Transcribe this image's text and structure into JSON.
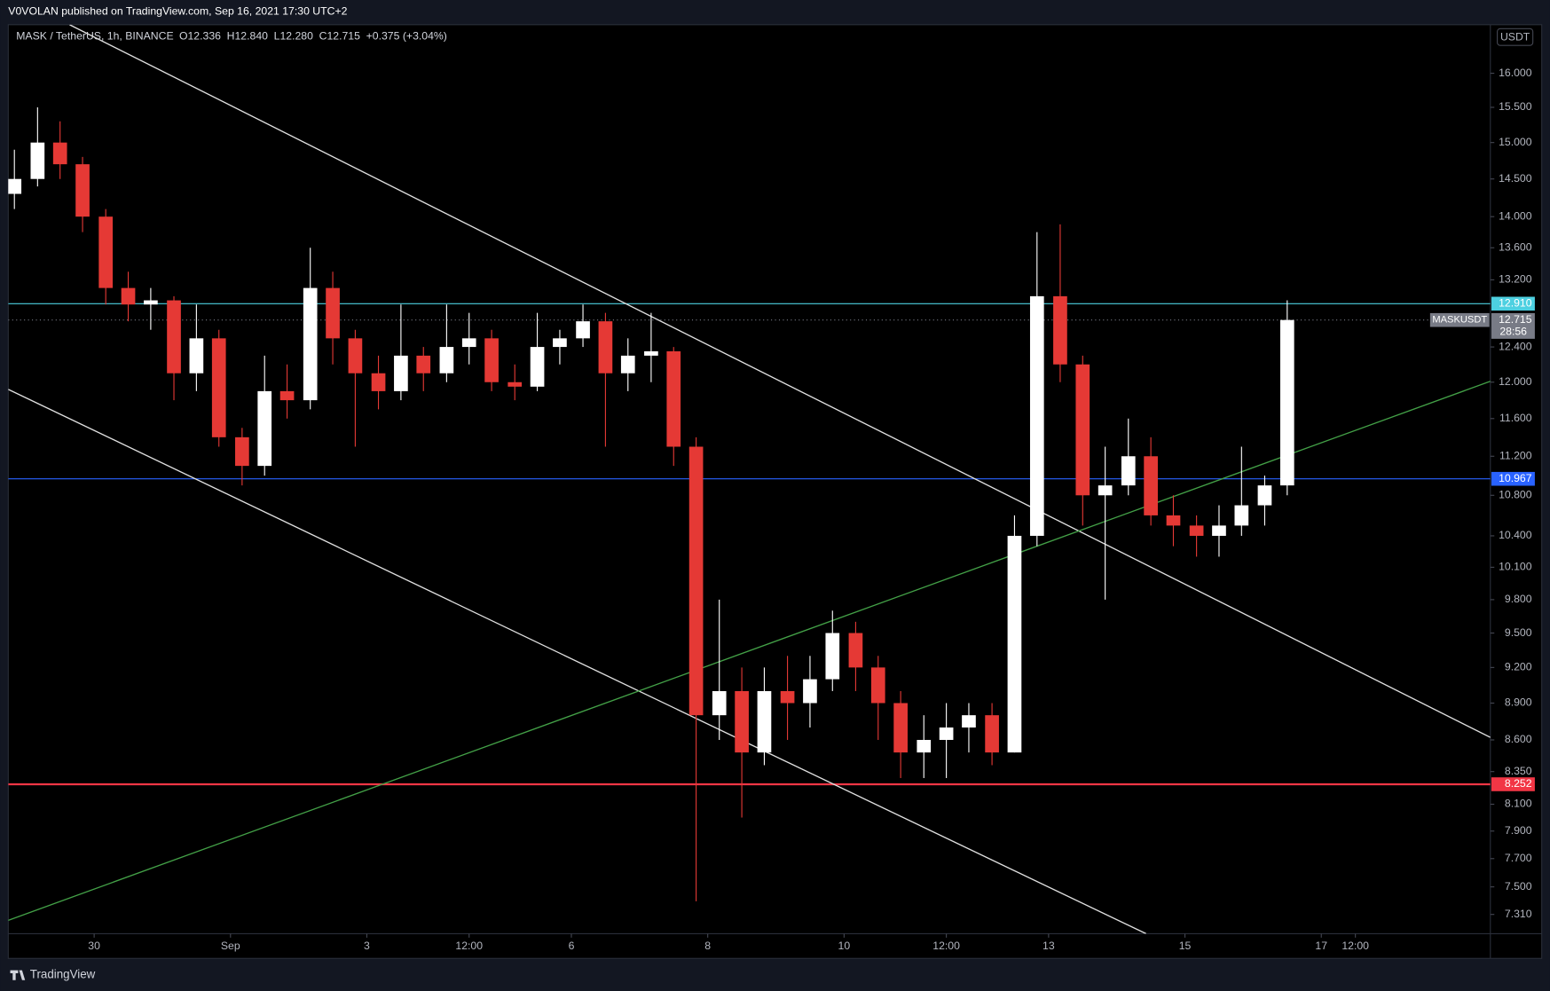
{
  "chart_data": {
    "type": "candlestick",
    "publisher_note": "V0VOLAN published on TradingView.com, Sep 16, 2021 17:30 UTC+2",
    "symbol": "MASK / TetherUS, 1h, BINANCE",
    "ohlc": [
      "O12.336",
      "H12.840",
      "L12.280",
      "C12.715",
      "+0.375 (+3.04%)"
    ],
    "currency": "USDT",
    "brand": "TradingView",
    "log_scale": true,
    "up_color": "#ffffff",
    "down_color": "#e53935",
    "xlim": [
      28.74,
      50.48
    ],
    "ylim": [
      7.18,
      16.74
    ],
    "xticks": [
      30,
      {
        "value": 32,
        "label": "Sep"
      },
      {
        "value": 34,
        "label": "3"
      },
      {
        "value": 35.5,
        "label": "12:00"
      },
      {
        "value": 37,
        "label": "6"
      },
      {
        "value": 39,
        "label": "8"
      },
      {
        "value": 41,
        "label": "10"
      },
      {
        "value": 42.5,
        "label": "12:00"
      },
      {
        "value": 44,
        "label": "13"
      },
      {
        "value": 46,
        "label": "15"
      },
      {
        "value": 48,
        "label": "17"
      },
      {
        "value": 48.5,
        "label": "12:00"
      }
    ],
    "yticks": [
      {
        "value": 16,
        "label": "16.000"
      },
      {
        "value": 15.5,
        "label": "15.500"
      },
      {
        "value": 15,
        "label": "15.000"
      },
      {
        "value": 14.5,
        "label": "14.500"
      },
      {
        "value": 14,
        "label": "14.000"
      },
      {
        "value": 13.6,
        "label": "13.600"
      },
      {
        "value": 13.2,
        "label": "13.200"
      },
      {
        "value": 12.4,
        "label": "12.400"
      },
      {
        "value": 12,
        "label": "12.000"
      },
      {
        "value": 11.6,
        "label": "11.600"
      },
      {
        "value": 11.2,
        "label": "11.200"
      },
      {
        "value": 10.8,
        "label": "10.800"
      },
      {
        "value": 10.4,
        "label": "10.400"
      },
      {
        "value": 10.1,
        "label": "10.100"
      },
      {
        "value": 9.8,
        "label": "9.800"
      },
      {
        "value": 9.5,
        "label": "9.500"
      },
      {
        "value": 9.2,
        "label": "9.200"
      },
      {
        "value": 8.9,
        "label": "8.900"
      },
      {
        "value": 8.6,
        "label": "8.600"
      },
      {
        "value": 8.35,
        "label": "8.350"
      },
      {
        "value": 8.1,
        "label": "8.100"
      },
      {
        "value": 7.9,
        "label": "7.900"
      },
      {
        "value": 7.7,
        "label": "7.700"
      },
      {
        "value": 7.5,
        "label": "7.500"
      },
      {
        "value": 7.31,
        "label": "7.310"
      }
    ],
    "x": [
      28.83,
      29.17,
      29.5,
      29.83,
      30.17,
      30.5,
      30.83,
      31.17,
      31.5,
      31.83,
      32.17,
      32.5,
      32.83,
      33.17,
      33.5,
      33.83,
      34.17,
      34.5,
      34.83,
      35.17,
      35.5,
      35.83,
      36.17,
      36.5,
      36.83,
      37.17,
      37.5,
      37.83,
      38.17,
      38.5,
      38.83,
      39.17,
      39.5,
      39.83,
      40.17,
      40.5,
      40.83,
      41.17,
      41.5,
      41.83,
      42.17,
      42.5,
      42.83,
      43.17,
      43.5,
      43.83,
      44.17,
      44.5,
      44.83,
      45.17,
      45.5,
      45.83,
      46.17,
      46.5,
      46.83,
      47.17,
      47.5
    ],
    "open": [
      14.3,
      14.5,
      15.0,
      14.7,
      14.0,
      13.1,
      12.9,
      12.95,
      12.1,
      12.5,
      11.4,
      11.1,
      11.9,
      11.8,
      13.1,
      12.5,
      12.1,
      11.9,
      12.3,
      12.1,
      12.4,
      12.5,
      12.0,
      11.95,
      12.4,
      12.5,
      12.7,
      12.1,
      12.3,
      12.35,
      11.3,
      8.8,
      9.0,
      8.5,
      9.0,
      8.9,
      9.1,
      9.5,
      9.2,
      8.9,
      8.5,
      8.6,
      8.7,
      8.8,
      8.5,
      10.4,
      13.0,
      12.2,
      10.8,
      10.9,
      11.2,
      10.6,
      10.5,
      10.4,
      10.5,
      10.7,
      10.9
    ],
    "high": [
      14.9,
      15.5,
      15.3,
      14.8,
      14.1,
      13.3,
      13.1,
      13.0,
      12.9,
      12.6,
      11.5,
      12.3,
      12.2,
      13.6,
      13.3,
      12.6,
      12.3,
      12.9,
      12.4,
      12.9,
      12.8,
      12.6,
      12.2,
      12.8,
      12.6,
      12.9,
      12.8,
      12.5,
      12.8,
      12.4,
      11.4,
      9.8,
      9.2,
      9.2,
      9.3,
      9.3,
      9.7,
      9.6,
      9.3,
      9.0,
      8.8,
      8.9,
      8.9,
      8.9,
      10.6,
      13.8,
      13.9,
      12.3,
      11.3,
      11.6,
      11.4,
      10.8,
      10.6,
      10.7,
      11.3,
      11.0,
      12.95
    ],
    "low": [
      14.1,
      14.4,
      14.5,
      13.8,
      12.9,
      12.7,
      12.6,
      11.8,
      11.9,
      11.3,
      10.9,
      11.0,
      11.6,
      11.7,
      12.2,
      11.3,
      11.7,
      11.8,
      11.9,
      12.0,
      12.2,
      11.9,
      11.8,
      11.9,
      12.2,
      12.4,
      11.3,
      11.9,
      12.0,
      11.1,
      7.4,
      8.6,
      8.0,
      8.4,
      8.6,
      8.7,
      9.0,
      9.0,
      8.6,
      8.3,
      8.3,
      8.3,
      8.5,
      8.4,
      8.5,
      10.3,
      12.0,
      10.5,
      9.8,
      10.8,
      10.5,
      10.3,
      10.2,
      10.2,
      10.4,
      10.5,
      10.8
    ],
    "close": [
      14.5,
      15.0,
      14.7,
      14.0,
      13.1,
      12.9,
      12.95,
      12.1,
      12.5,
      11.4,
      11.1,
      11.9,
      11.8,
      13.1,
      12.5,
      12.1,
      11.9,
      12.3,
      12.1,
      12.4,
      12.5,
      12.0,
      11.95,
      12.4,
      12.5,
      12.7,
      12.1,
      12.3,
      12.35,
      11.3,
      8.8,
      9.0,
      8.5,
      9.0,
      8.9,
      9.1,
      9.5,
      9.2,
      8.9,
      8.5,
      8.6,
      8.7,
      8.8,
      8.5,
      10.4,
      13.0,
      12.2,
      10.8,
      10.9,
      11.2,
      10.6,
      10.5,
      10.4,
      10.5,
      10.7,
      10.9,
      12.715
    ],
    "levels": [
      {
        "value": 12.91,
        "label": "12.910",
        "color": "#4dd0e1"
      },
      {
        "value": 10.967,
        "label": "10.967",
        "color": "#2962ff"
      },
      {
        "value": 8.252,
        "label": "8.252",
        "color": "#f23645"
      }
    ],
    "last_price": {
      "value": 12.715,
      "label": "12.715",
      "name": "MASKUSDT",
      "countdown": "28:56",
      "color": "#787b86"
    },
    "trend_lines": [
      {
        "x": [
          29.64,
          50.48
        ],
        "y": [
          16.74,
          8.62
        ],
        "color": "#e0e0e0"
      },
      {
        "x": [
          28.74,
          45.43
        ],
        "y": [
          11.92,
          7.18
        ],
        "color": "#e0e0e0"
      },
      {
        "x": [
          28.74,
          50.48
        ],
        "y": [
          7.27,
          12.01
        ],
        "color": "#43a047"
      }
    ]
  }
}
